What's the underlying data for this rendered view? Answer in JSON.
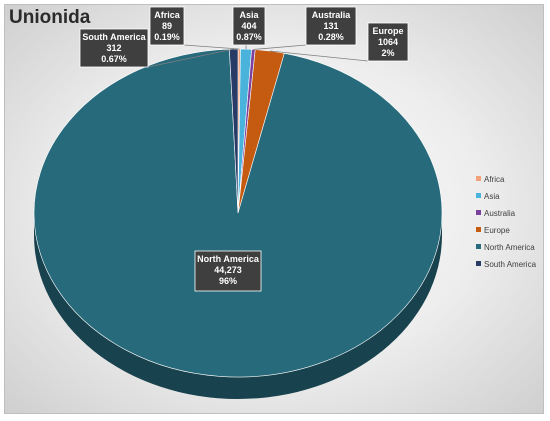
{
  "chart_data": {
    "type": "pie",
    "title": "Unionida",
    "slices": [
      {
        "name": "Africa",
        "value": 89,
        "value_text": "89",
        "percent_text": "0.19%",
        "color": "#f2a17a"
      },
      {
        "name": "Asia",
        "value": 404,
        "value_text": "404",
        "percent_text": "0.87%",
        "color": "#4ab3dc"
      },
      {
        "name": "Australia",
        "value": 131,
        "value_text": "131",
        "percent_text": "0.28%",
        "color": "#7b3f9e"
      },
      {
        "name": "Europe",
        "value": 1064,
        "value_text": "1064",
        "percent_text": "2%",
        "color": "#c55a11"
      },
      {
        "name": "North America",
        "value": 44273,
        "value_text": "44,273",
        "percent_text": "96%",
        "color": "#276a7c"
      },
      {
        "name": "South America",
        "value": 312,
        "value_text": "312",
        "percent_text": "0.67%",
        "color": "#283a66"
      }
    ],
    "legend_position": "right",
    "style": "3d-pie"
  }
}
